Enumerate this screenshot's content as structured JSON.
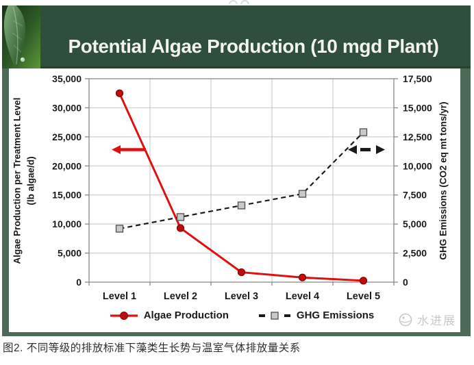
{
  "page": {
    "caption": "图2. 不同等级的排放标准下藻类生长势与温室气体排放量关系"
  },
  "slide": {
    "title": "Potential Algae Production (10 mgd Plant)",
    "watermark_text": "水进展"
  },
  "theme": {
    "header_green": "#2f4e3b",
    "frame_green": "#4d6a58",
    "chart_text": "#1a1a1a",
    "grid_gray": "#c3c3c3",
    "frame_gray": "#888888",
    "watermark_gray": "#c9c9c4"
  },
  "chart_data": {
    "type": "line",
    "title": "Potential Algae Production (10 mgd Plant)",
    "categories": [
      "Level 1",
      "Level 2",
      "Level 3",
      "Level 4",
      "Level 5"
    ],
    "series": [
      {
        "name": "Algae Production",
        "axis": "left",
        "line_style": "solid",
        "color": "#de1010",
        "marker": "circle",
        "marker_fill": "#c00c0c",
        "marker_stroke": "#7e0202",
        "values": [
          32500,
          9300,
          1700,
          800,
          250
        ]
      },
      {
        "name": "GHG Emissions",
        "axis": "right",
        "line_style": "dashed",
        "color": "#1a1a1a",
        "marker": "square",
        "marker_fill": "#c9c9c9",
        "marker_stroke": "#4d4d4d",
        "values": [
          4600,
          5600,
          6600,
          7600,
          12900
        ]
      }
    ],
    "left_axis": {
      "title": "Algae Production per Treatment Level",
      "subtitle": "(lb algae/d)",
      "min": 0,
      "max": 35000,
      "step": 5000,
      "tick_labels": [
        "0",
        "5,000",
        "10,000",
        "15,000",
        "20,000",
        "25,000",
        "30,000",
        "35,000"
      ]
    },
    "right_axis": {
      "title": "GHG Emissions (CO2 eq mt tons/yr)",
      "min": 0,
      "max": 17500,
      "step": 2500,
      "tick_labels": [
        "0",
        "2,500",
        "5,000",
        "7,500",
        "10,000",
        "12,500",
        "15,000",
        "17,500"
      ]
    },
    "grid": true,
    "legend_position": "bottom",
    "annotations": [
      {
        "id": "algae-axis-arrow",
        "shape": "arrow",
        "direction": "left",
        "line_style": "solid",
        "color": "#de1010",
        "axis": "left",
        "value": 22800,
        "double_headed": false
      },
      {
        "id": "ghg-axis-arrow",
        "shape": "arrow",
        "direction": "right",
        "line_style": "dashed",
        "color": "#1a1a1a",
        "axis": "right",
        "value": 11400,
        "double_headed": true
      }
    ]
  }
}
